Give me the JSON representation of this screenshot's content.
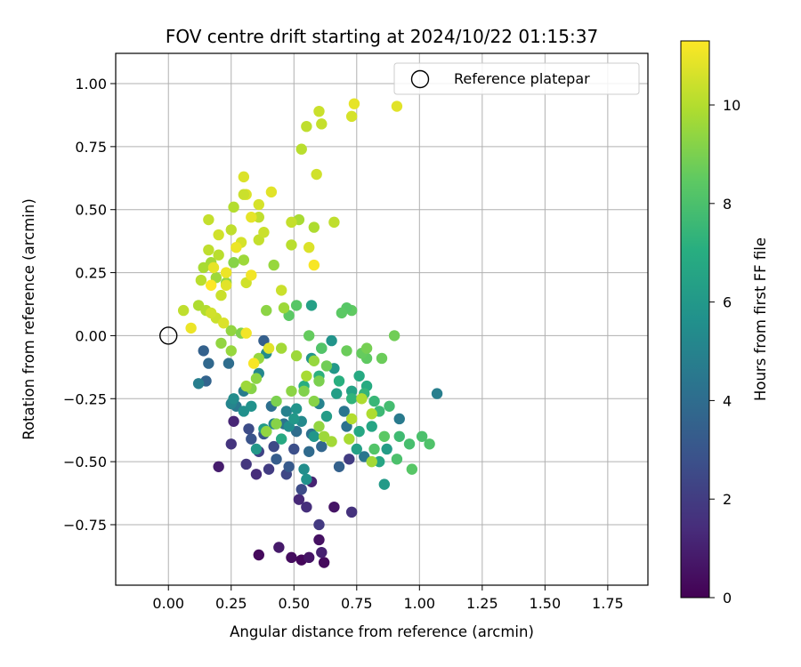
{
  "chart_data": {
    "type": "scatter",
    "title": "FOV centre drift starting at 2024/10/22 01:15:37",
    "xlabel": "Angular distance from reference (arcmin)",
    "ylabel": "Rotation from reference (arcmin)",
    "xlim": [
      -0.21,
      1.91
    ],
    "ylim": [
      -0.99,
      1.12
    ],
    "xticks": [
      "0.00",
      "0.25",
      "0.50",
      "0.75",
      "1.00",
      "1.25",
      "1.50",
      "1.75"
    ],
    "xtick_values": [
      0,
      0.25,
      0.5,
      0.75,
      1.0,
      1.25,
      1.5,
      1.75
    ],
    "yticks": [
      "−0.75",
      "−0.50",
      "−0.25",
      "0.00",
      "0.25",
      "0.50",
      "0.75",
      "1.00"
    ],
    "ytick_values": [
      -0.75,
      -0.5,
      -0.25,
      0,
      0.25,
      0.5,
      0.75,
      1.0
    ],
    "grid": true,
    "legend": {
      "position": "top-right",
      "entries": [
        "Reference platepar"
      ]
    },
    "reference_point": {
      "x": 0.0,
      "y": 0.0
    },
    "colorbar": {
      "label": "Hours from first FF file",
      "range": [
        0,
        11.3
      ],
      "ticks": [
        "0",
        "2",
        "4",
        "6",
        "8",
        "10"
      ],
      "tick_values": [
        0,
        2,
        4,
        6,
        8,
        10
      ],
      "colormap": "viridis"
    },
    "series": [
      {
        "values": [
          [
            0.36,
            -0.87,
            0.3
          ],
          [
            0.49,
            -0.88,
            0.4
          ],
          [
            0.53,
            -0.89,
            0.2
          ],
          [
            0.56,
            -0.88,
            0.6
          ],
          [
            0.62,
            -0.9,
            0.3
          ],
          [
            0.44,
            -0.84,
            0.8
          ],
          [
            0.6,
            -0.81,
            0.5
          ],
          [
            0.66,
            -0.68,
            0.6
          ],
          [
            0.2,
            -0.52,
            0.9
          ],
          [
            0.61,
            -0.86,
            1.0
          ],
          [
            0.52,
            -0.65,
            1.3
          ],
          [
            0.57,
            -0.58,
            1.1
          ],
          [
            0.55,
            -0.68,
            1.5
          ],
          [
            0.73,
            -0.7,
            1.6
          ],
          [
            0.6,
            -0.75,
            1.9
          ],
          [
            0.35,
            -0.55,
            1.4
          ],
          [
            0.25,
            -0.43,
            1.7
          ],
          [
            0.26,
            -0.34,
            1.2
          ],
          [
            0.31,
            -0.51,
            1.8
          ],
          [
            0.4,
            -0.53,
            2.0
          ],
          [
            0.47,
            -0.55,
            2.4
          ],
          [
            0.53,
            -0.61,
            2.6
          ],
          [
            0.5,
            -0.45,
            2.7
          ],
          [
            0.36,
            -0.46,
            2.2
          ],
          [
            0.42,
            -0.44,
            2.5
          ],
          [
            0.33,
            -0.41,
            2.9
          ],
          [
            0.38,
            -0.39,
            3.0
          ],
          [
            0.48,
            -0.52,
            3.2
          ],
          [
            0.43,
            -0.49,
            3.3
          ],
          [
            0.32,
            -0.37,
            2.6
          ],
          [
            0.72,
            -0.49,
            2.0
          ],
          [
            0.15,
            -0.18,
            3.6
          ],
          [
            0.14,
            -0.06,
            3.5
          ],
          [
            0.16,
            -0.11,
            3.8
          ],
          [
            0.38,
            -0.02,
            3.4
          ],
          [
            0.61,
            -0.44,
            3.7
          ],
          [
            0.68,
            -0.52,
            3.5
          ],
          [
            0.56,
            -0.46,
            3.9
          ],
          [
            0.51,
            -0.38,
            4.0
          ],
          [
            0.57,
            -0.39,
            4.2
          ],
          [
            0.71,
            -0.36,
            4.2
          ],
          [
            0.78,
            -0.48,
            4.4
          ],
          [
            0.92,
            -0.33,
            4.6
          ],
          [
            1.07,
            -0.23,
            4.8
          ],
          [
            0.41,
            -0.28,
            4.1
          ],
          [
            0.27,
            -0.28,
            4.5
          ],
          [
            0.46,
            -0.35,
            4.3
          ],
          [
            0.3,
            -0.22,
            4.7
          ],
          [
            0.24,
            -0.11,
            4.0
          ],
          [
            0.12,
            -0.19,
            4.8
          ],
          [
            0.6,
            -0.27,
            5.0
          ],
          [
            0.7,
            -0.3,
            4.4
          ],
          [
            0.36,
            -0.15,
            5.2
          ],
          [
            0.39,
            -0.07,
            5.4
          ],
          [
            0.25,
            -0.27,
            5.1
          ],
          [
            0.42,
            -0.35,
            5.1
          ],
          [
            0.47,
            -0.3,
            4.9
          ],
          [
            0.53,
            -0.34,
            5.3
          ],
          [
            0.54,
            -0.53,
            5.5
          ],
          [
            0.55,
            -0.57,
            5.7
          ],
          [
            0.51,
            -0.29,
            5.8
          ],
          [
            0.48,
            -0.36,
            5.5
          ],
          [
            0.5,
            -0.33,
            6.0
          ],
          [
            0.58,
            -0.4,
            5.9
          ],
          [
            0.63,
            -0.32,
            6.2
          ],
          [
            0.67,
            -0.23,
            6.3
          ],
          [
            0.73,
            -0.22,
            6.5
          ],
          [
            0.76,
            -0.38,
            6.7
          ],
          [
            0.81,
            -0.36,
            6.6
          ],
          [
            0.76,
            -0.16,
            6.8
          ],
          [
            0.79,
            -0.2,
            6.9
          ],
          [
            0.75,
            -0.45,
            6.4
          ],
          [
            0.87,
            -0.45,
            6.2
          ],
          [
            0.86,
            -0.59,
            6.1
          ],
          [
            0.84,
            -0.5,
            6.6
          ],
          [
            0.66,
            -0.13,
            6.0
          ],
          [
            0.57,
            0.12,
            6.4
          ],
          [
            0.57,
            -0.09,
            5.9
          ],
          [
            0.65,
            -0.02,
            5.8
          ],
          [
            0.61,
            -0.05,
            6.3
          ],
          [
            0.39,
            -0.38,
            6.5
          ],
          [
            0.35,
            -0.45,
            6.0
          ],
          [
            0.33,
            -0.28,
            5.7
          ],
          [
            0.26,
            -0.25,
            5.4
          ],
          [
            0.3,
            -0.3,
            5.6
          ],
          [
            0.38,
            -0.37,
            6.1
          ],
          [
            0.45,
            -0.41,
            6.8
          ],
          [
            0.54,
            -0.2,
            7.0
          ],
          [
            0.6,
            -0.16,
            7.2
          ],
          [
            0.68,
            -0.18,
            7.1
          ],
          [
            0.73,
            -0.25,
            7.3
          ],
          [
            0.78,
            -0.23,
            7.4
          ],
          [
            0.82,
            -0.26,
            7.5
          ],
          [
            0.84,
            -0.3,
            7.6
          ],
          [
            0.88,
            -0.28,
            7.8
          ],
          [
            0.92,
            -0.4,
            7.7
          ],
          [
            0.96,
            -0.43,
            7.9
          ],
          [
            1.01,
            -0.4,
            8.0
          ],
          [
            1.04,
            -0.43,
            8.1
          ],
          [
            0.97,
            -0.53,
            8.3
          ],
          [
            0.91,
            -0.49,
            8.0
          ],
          [
            0.82,
            -0.45,
            8.2
          ],
          [
            0.86,
            -0.4,
            8.4
          ],
          [
            0.79,
            -0.09,
            8.5
          ],
          [
            0.77,
            -0.07,
            8.6
          ],
          [
            0.73,
            0.1,
            8.5
          ],
          [
            0.71,
            0.11,
            8.3
          ],
          [
            0.69,
            0.09,
            8.4
          ],
          [
            0.61,
            -0.05,
            8.2
          ],
          [
            0.56,
            0.0,
            8.6
          ],
          [
            0.51,
            0.12,
            8.3
          ],
          [
            0.48,
            0.08,
            8.4
          ],
          [
            0.9,
            0.0,
            8.8
          ],
          [
            0.85,
            -0.09,
            8.7
          ],
          [
            0.79,
            -0.05,
            8.9
          ],
          [
            0.71,
            -0.06,
            8.7
          ],
          [
            0.63,
            -0.12,
            8.8
          ],
          [
            0.6,
            -0.18,
            9.0
          ],
          [
            0.54,
            -0.22,
            9.1
          ],
          [
            0.58,
            -0.26,
            9.2
          ],
          [
            0.49,
            -0.22,
            9.3
          ],
          [
            0.43,
            -0.26,
            9.0
          ],
          [
            0.43,
            -0.35,
            9.2
          ],
          [
            0.39,
            -0.38,
            9.4
          ],
          [
            0.33,
            -0.21,
            9.2
          ],
          [
            0.35,
            -0.17,
            9.3
          ],
          [
            0.25,
            -0.06,
            9.5
          ],
          [
            0.21,
            -0.03,
            9.4
          ],
          [
            0.25,
            0.02,
            9.4
          ],
          [
            0.29,
            0.01,
            9.1
          ],
          [
            0.31,
            -0.2,
            9.6
          ],
          [
            0.36,
            -0.09,
            9.5
          ],
          [
            0.45,
            -0.05,
            9.7
          ],
          [
            0.51,
            -0.08,
            9.6
          ],
          [
            0.55,
            -0.16,
            9.8
          ],
          [
            0.58,
            -0.1,
            9.5
          ],
          [
            0.6,
            -0.36,
            9.4
          ],
          [
            0.62,
            -0.4,
            9.6
          ],
          [
            0.65,
            -0.42,
            9.7
          ],
          [
            0.72,
            -0.41,
            9.8
          ],
          [
            0.77,
            -0.25,
            9.9
          ],
          [
            0.81,
            -0.31,
            9.9
          ],
          [
            0.73,
            -0.33,
            10.0
          ],
          [
            0.81,
            -0.5,
            9.7
          ],
          [
            0.46,
            0.11,
            9.6
          ],
          [
            0.42,
            0.28,
            9.5
          ],
          [
            0.39,
            0.1,
            9.3
          ],
          [
            0.3,
            0.3,
            9.6
          ],
          [
            0.26,
            0.29,
            9.2
          ],
          [
            0.23,
            0.21,
            9.4
          ],
          [
            0.19,
            0.23,
            9.6
          ],
          [
            0.17,
            0.29,
            9.7
          ],
          [
            0.14,
            0.27,
            9.8
          ],
          [
            0.12,
            0.12,
            9.9
          ],
          [
            0.15,
            0.1,
            10.0
          ],
          [
            0.16,
            0.34,
            10.2
          ],
          [
            0.2,
            0.32,
            10.1
          ],
          [
            0.16,
            0.46,
            10.3
          ],
          [
            0.19,
            0.07,
            10.4
          ],
          [
            0.13,
            0.22,
            10.1
          ],
          [
            0.06,
            0.1,
            10.2
          ],
          [
            0.17,
            0.09,
            10.5
          ],
          [
            0.21,
            0.16,
            10.4
          ],
          [
            0.23,
            0.2,
            10.8
          ],
          [
            0.31,
            0.21,
            10.5
          ],
          [
            0.36,
            0.38,
            10.3
          ],
          [
            0.38,
            0.41,
            10.4
          ],
          [
            0.29,
            0.37,
            10.6
          ],
          [
            0.25,
            0.42,
            10.2
          ],
          [
            0.2,
            0.4,
            10.5
          ],
          [
            0.26,
            0.51,
            10.0
          ],
          [
            0.31,
            0.56,
            10.7
          ],
          [
            0.36,
            0.52,
            10.6
          ],
          [
            0.36,
            0.47,
            10.2
          ],
          [
            0.41,
            0.57,
            10.8
          ],
          [
            0.33,
            0.47,
            10.9
          ],
          [
            0.3,
            0.56,
            10.4
          ],
          [
            0.3,
            0.63,
            10.7
          ],
          [
            0.49,
            0.36,
            10.1
          ],
          [
            0.52,
            0.46,
            9.8
          ],
          [
            0.58,
            0.43,
            9.9
          ],
          [
            0.66,
            0.45,
            10.2
          ],
          [
            0.49,
            0.45,
            10.3
          ],
          [
            0.45,
            0.18,
            10.4
          ],
          [
            0.53,
            0.74,
            10.1
          ],
          [
            0.55,
            0.83,
            10.2
          ],
          [
            0.59,
            0.64,
            10.5
          ],
          [
            0.61,
            0.84,
            10.3
          ],
          [
            0.6,
            0.89,
            10.4
          ],
          [
            0.73,
            0.87,
            10.6
          ],
          [
            0.74,
            0.92,
            10.9
          ],
          [
            0.91,
            0.91,
            10.8
          ],
          [
            0.18,
            0.27,
            10.9
          ],
          [
            0.22,
            0.05,
            10.7
          ],
          [
            0.09,
            0.03,
            11.0
          ],
          [
            0.31,
            0.01,
            11.1
          ],
          [
            0.34,
            -0.11,
            11.2
          ],
          [
            0.23,
            0.25,
            11.0
          ],
          [
            0.17,
            0.2,
            11.3
          ],
          [
            0.56,
            0.35,
            10.7
          ],
          [
            0.33,
            0.24,
            11.1
          ],
          [
            0.58,
            0.28,
            11.2
          ],
          [
            0.4,
            -0.05,
            10.8
          ],
          [
            0.27,
            0.35,
            11.0
          ]
        ]
      }
    ]
  }
}
